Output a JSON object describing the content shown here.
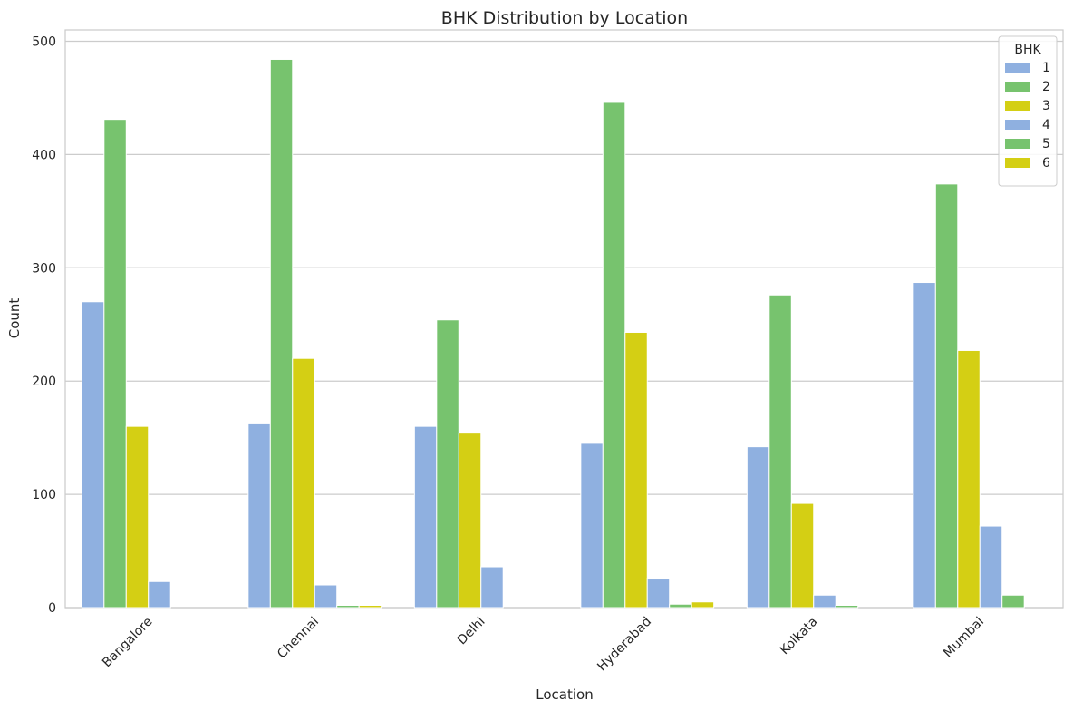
{
  "chart_data": {
    "type": "bar",
    "title": "BHK Distribution by Location",
    "xlabel": "Location",
    "ylabel": "Count",
    "ylim": [
      0,
      510
    ],
    "yticks": [
      0,
      100,
      200,
      300,
      400,
      500
    ],
    "grid": "horizontal",
    "legend": {
      "title": "BHK",
      "placement": "top-right"
    },
    "categories": [
      "Bangalore",
      "Chennai",
      "Delhi",
      "Hyderabad",
      "Kolkata",
      "Mumbai"
    ],
    "series": [
      {
        "name": "1",
        "color": "#8fb0e0",
        "values": [
          270,
          163,
          160,
          145,
          142,
          287
        ]
      },
      {
        "name": "2",
        "color": "#77c36e",
        "values": [
          431,
          484,
          254,
          446,
          276,
          374
        ]
      },
      {
        "name": "3",
        "color": "#d4cf14",
        "values": [
          160,
          220,
          154,
          243,
          92,
          227
        ]
      },
      {
        "name": "4",
        "color": "#8fb0e0",
        "values": [
          23,
          20,
          36,
          26,
          11,
          72
        ]
      },
      {
        "name": "5",
        "color": "#77c36e",
        "values": [
          0,
          2,
          0,
          3,
          2,
          11
        ]
      },
      {
        "name": "6",
        "color": "#d4cf14",
        "values": [
          0,
          2,
          0,
          5,
          0,
          0
        ]
      }
    ]
  }
}
